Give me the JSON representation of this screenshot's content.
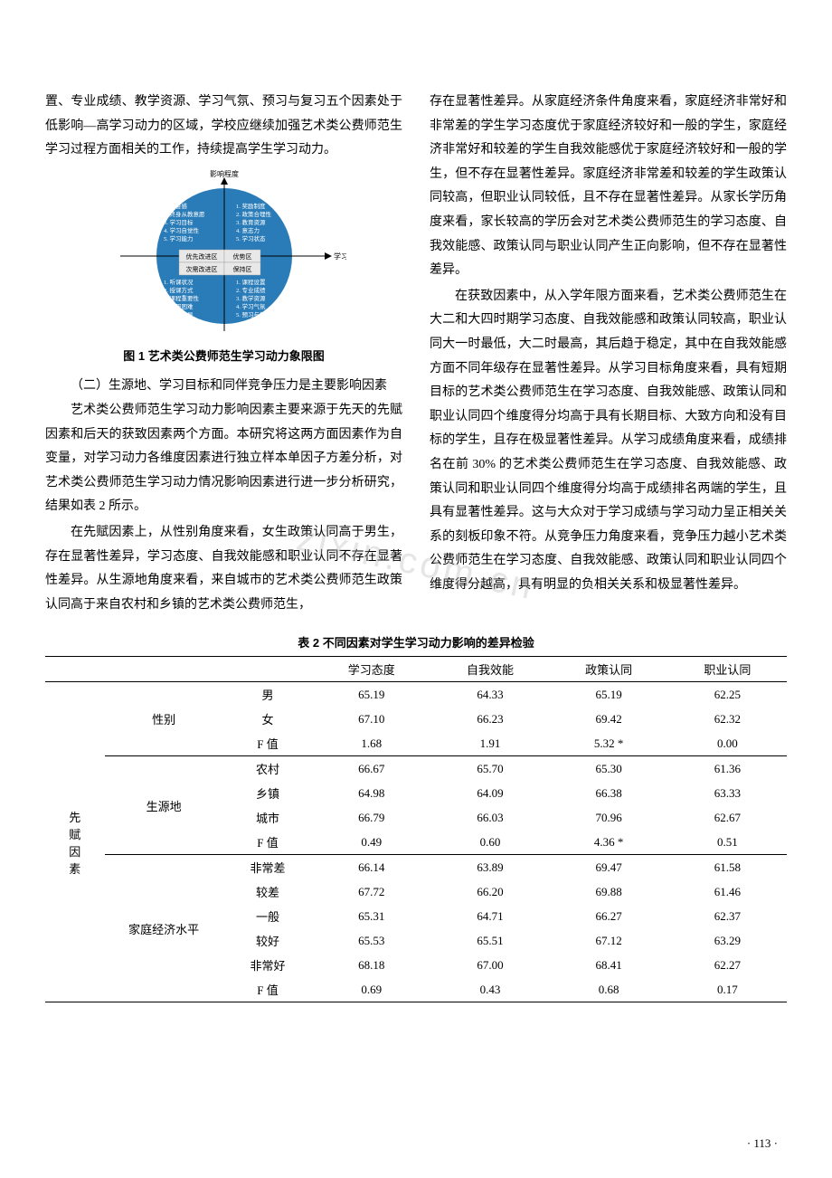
{
  "left_col": {
    "p1": "置、专业成绩、教学资源、学习气氛、预习与复习五个因素处于低影响—高学习动力的区域，学校应继续加强艺术类公费师范生学习过程方面相关的工作，持续提高学生学习动力。",
    "fig_caption": "图 1  艺术类公费师范生学习动力象限图",
    "subhead1": "（二）生源地、学习目标和同伴竞争压力是主要影响因素",
    "p2": "艺术类公费师范生学习动力影响因素主要来源于先天的先赋因素和后天的获致因素两个方面。本研究将这两方面因素作为自变量，对学习动力各维度因素进行独立样本单因子方差分析，对艺术类公费师范生学习动力情况影响因素进行进一步分析研究，结果如表 2 所示。",
    "p3": "在先赋因素上，从性别角度来看，女生政策认同高于男生，存在显著性差异，学习态度、自我效能感和职业认同不存在显著性差异。从生源地角度来看，来自城市的艺术类公费师范生政策认同高于来自农村和乡镇的艺术类公费师范生，"
  },
  "right_col": {
    "p1": "存在显著性差异。从家庭经济条件角度来看，家庭经济非常好和非常差的学生学习态度优于家庭经济较好和一般的学生，家庭经济非常好和较差的学生自我效能感优于家庭经济较好和一般的学生，但不存在显著性差异。家庭经济非常差和较差的学生政策认同较高，但职业认同较低，且不存在显著性差异。从家长学历角度来看，家长较高的学历会对艺术类公费师范生的学习态度、自我效能感、政策认同与职业认同产生正向影响，但不存在显著性差异。",
    "p2": "在获致因素中，从入学年限方面来看，艺术类公费师范生在大二和大四时期学习态度、自我效能感和政策认同较高，职业认同大一时最低，大二时最高，其后趋于稳定，其中在自我效能感方面不同年级存在显著性差异。从学习目标角度来看，具有短期目标的艺术类公费师范生在学习态度、自我效能感、政策认同和职业认同四个维度得分均高于具有长期目标、大致方向和没有目标的学生，且存在极显著性差异。从学习成绩角度来看，成绩排名在前 30% 的艺术类公费师范生在学习态度、自我效能感、政策认同和职业认同四个维度得分均高于成绩排名两端的学生，且具有显著性差异。这与大众对于学习成绩与学习动力呈正相关关系的刻板印象不符。从竞争压力角度来看，竞争压力越小艺术类公费师范生在学习态度、自我效能感、政策认同和职业认同四个维度得分越高，具有明显的负相关关系和极显著性差异。"
  },
  "figure": {
    "axis_y_label": "影响程度",
    "axis_x_label": "学习动力",
    "disc_color": "#2a7cb8",
    "q_labels": [
      "优先改进区",
      "优势区",
      "次需改进区",
      "保持区"
    ],
    "quad_tl": [
      "1. 荣誉感",
      "2. 终身从教意愿",
      "3. 学习目标",
      "4. 学习自觉性",
      "5. 学习能力"
    ],
    "quad_tr": [
      "1. 奖励制度",
      "2. 政策合理性",
      "3. 教育资源",
      "4. 意志力",
      "5. 学习状态"
    ],
    "quad_bl": [
      "1. 听课状况",
      "2. 授课方式",
      "3. 课程重要性",
      "4. 克服困难",
      "5. 教师指导"
    ],
    "quad_br": [
      "1. 课程设置",
      "2. 专业成绩",
      "3. 教学资源",
      "4. 学习气氛",
      "5. 预习与复习"
    ]
  },
  "table": {
    "title": "表 2  不同因素对学生学习动力影响的差异检验",
    "headers": [
      "",
      "",
      "",
      "学习态度",
      "自我效能",
      "政策认同",
      "职业认同"
    ],
    "group_label": "先赋因素",
    "sections": [
      {
        "sub": "性别",
        "rows": [
          [
            "男",
            "65.19",
            "64.33",
            "65.19",
            "62.25"
          ],
          [
            "女",
            "67.10",
            "66.23",
            "69.42",
            "62.32"
          ],
          [
            "F 值",
            "1.68",
            "1.91",
            "5.32 *",
            "0.00"
          ]
        ]
      },
      {
        "sub": "生源地",
        "rows": [
          [
            "农村",
            "66.67",
            "65.70",
            "65.30",
            "61.36"
          ],
          [
            "乡镇",
            "64.98",
            "64.09",
            "66.38",
            "63.33"
          ],
          [
            "城市",
            "66.79",
            "66.03",
            "70.96",
            "62.67"
          ],
          [
            "F 值",
            "0.49",
            "0.60",
            "4.36 *",
            "0.51"
          ]
        ]
      },
      {
        "sub": "家庭经济水平",
        "rows": [
          [
            "非常差",
            "66.14",
            "63.89",
            "69.47",
            "61.58"
          ],
          [
            "较差",
            "67.72",
            "66.20",
            "69.88",
            "61.46"
          ],
          [
            "一般",
            "65.31",
            "64.71",
            "66.27",
            "62.37"
          ],
          [
            "较好",
            "65.53",
            "65.51",
            "67.12",
            "63.29"
          ],
          [
            "非常好",
            "68.18",
            "67.00",
            "68.41",
            "62.27"
          ],
          [
            "F 值",
            "0.69",
            "0.43",
            "0.68",
            "0.17"
          ]
        ]
      }
    ]
  },
  "page_num": "· 113 ·",
  "watermark": "zixin.com.cn"
}
